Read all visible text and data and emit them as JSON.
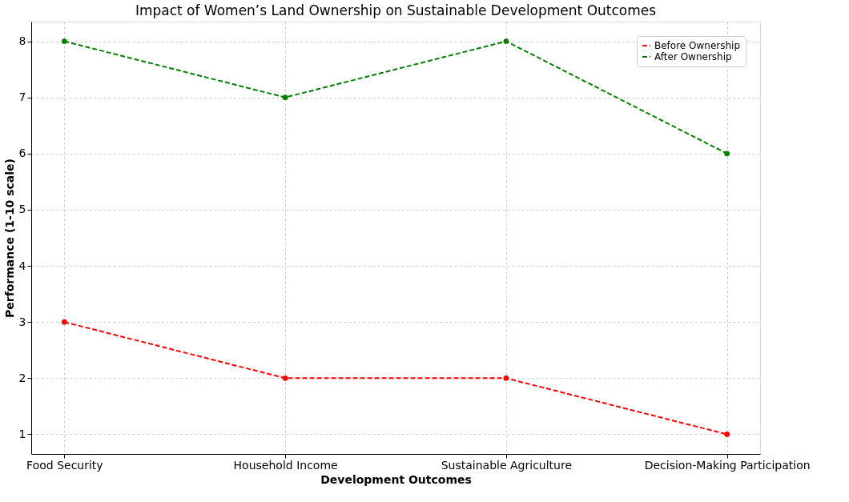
{
  "chart_data": {
    "type": "line",
    "title": "Impact of Women’s Land Ownership on Sustainable Development Outcomes",
    "xlabel": "Development Outcomes",
    "ylabel": "Performance (1-10 scale)",
    "categories": [
      "Food Security",
      "Household Income",
      "Sustainable Agriculture",
      "Decision-Making Participation"
    ],
    "series": [
      {
        "name": "Before Ownership",
        "color": "#ff0000",
        "values": [
          3,
          2,
          2,
          1
        ]
      },
      {
        "name": "After Ownership",
        "color": "#008000",
        "values": [
          8,
          7,
          8,
          6
        ]
      }
    ],
    "ylim": [
      0.65,
      8.35
    ],
    "yticks": [
      1,
      2,
      3,
      4,
      5,
      6,
      7,
      8
    ],
    "grid": true,
    "legend": "top right",
    "marker": "circle",
    "line_style": "dashed"
  }
}
